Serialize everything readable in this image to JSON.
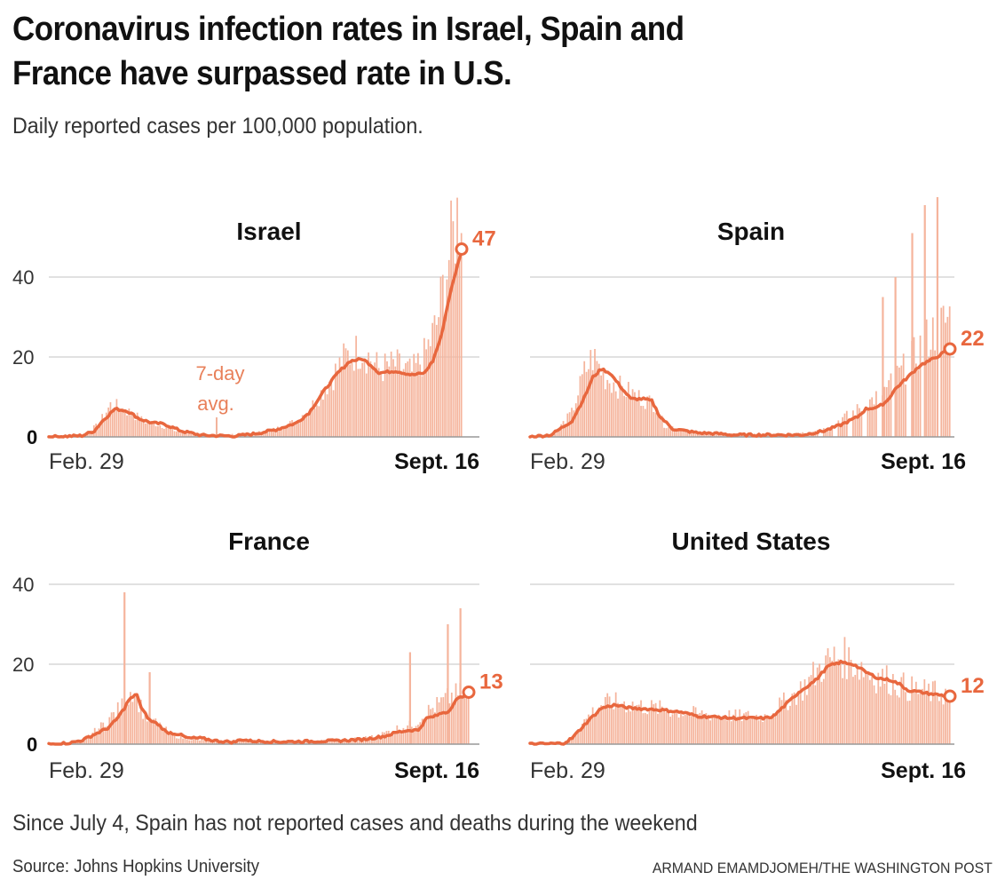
{
  "header": {
    "title_line1": "Coronavirus infection rates in Israel, Spain and",
    "title_line2": "France have surpassed rate in U.S.",
    "subtitle": "Daily reported cases per 100,000 population."
  },
  "footer": {
    "note": "Since July 4, Spain has not reported cases and deaths during the weekend",
    "source": "Source: Johns Hopkins University",
    "credit": "ARMAND EMAMDJOMEH/THE WASHINGTON POST"
  },
  "colors": {
    "bar": "#f5b49c",
    "avg_line": "#e8673e",
    "annotation": "#e8805a",
    "grid": "#cfcfcf"
  },
  "chart_data": [
    {
      "type": "bar",
      "title": "Israel",
      "xlabel_start": "Feb. 29",
      "xlabel_end": "Sept. 16",
      "yticks": [
        "0",
        "20",
        "40"
      ],
      "ylim": [
        0,
        68
      ],
      "end_value": 47,
      "end_label": "47",
      "annotation": {
        "line1": "7-day",
        "line2": "avg."
      },
      "avg_keyframes": [
        [
          0,
          0
        ],
        [
          0.08,
          0.3
        ],
        [
          0.11,
          1.5
        ],
        [
          0.13,
          4
        ],
        [
          0.16,
          7
        ],
        [
          0.19,
          6.5
        ],
        [
          0.22,
          4.5
        ],
        [
          0.25,
          3.5
        ],
        [
          0.28,
          3.2
        ],
        [
          0.32,
          1.5
        ],
        [
          0.37,
          0.4
        ],
        [
          0.45,
          0.2
        ],
        [
          0.5,
          0.8
        ],
        [
          0.55,
          1.8
        ],
        [
          0.6,
          3.5
        ],
        [
          0.63,
          6
        ],
        [
          0.67,
          12
        ],
        [
          0.7,
          16
        ],
        [
          0.73,
          19
        ],
        [
          0.76,
          19.5
        ],
        [
          0.78,
          18
        ],
        [
          0.8,
          16
        ],
        [
          0.84,
          16.5
        ],
        [
          0.88,
          15.5
        ],
        [
          0.91,
          16
        ],
        [
          0.93,
          19
        ],
        [
          0.95,
          25
        ],
        [
          0.97,
          35
        ],
        [
          1.0,
          47
        ]
      ],
      "daily_keyframes": [
        [
          0,
          0
        ],
        [
          0.08,
          0.5
        ],
        [
          0.12,
          3
        ],
        [
          0.15,
          8
        ],
        [
          0.17,
          7.5
        ],
        [
          0.2,
          6
        ],
        [
          0.23,
          4
        ],
        [
          0.27,
          3
        ],
        [
          0.32,
          1
        ],
        [
          0.4,
          0.3
        ],
        [
          0.5,
          1
        ],
        [
          0.55,
          2
        ],
        [
          0.6,
          4
        ],
        [
          0.64,
          8
        ],
        [
          0.68,
          14
        ],
        [
          0.72,
          20
        ],
        [
          0.76,
          22
        ],
        [
          0.8,
          17
        ],
        [
          0.84,
          18
        ],
        [
          0.88,
          16
        ],
        [
          0.91,
          20
        ],
        [
          0.94,
          28
        ],
        [
          0.97,
          45
        ],
        [
          1.0,
          60
        ]
      ]
    },
    {
      "type": "bar",
      "title": "Spain",
      "xlabel_start": "Feb. 29",
      "xlabel_end": "Sept. 16",
      "yticks": [],
      "ylim": [
        0,
        68
      ],
      "end_value": 22,
      "end_label": "22",
      "avg_keyframes": [
        [
          0,
          0
        ],
        [
          0.05,
          0.5
        ],
        [
          0.1,
          4
        ],
        [
          0.13,
          10
        ],
        [
          0.15,
          15
        ],
        [
          0.17,
          17
        ],
        [
          0.19,
          16
        ],
        [
          0.22,
          12
        ],
        [
          0.24,
          9.5
        ],
        [
          0.27,
          9.5
        ],
        [
          0.29,
          9
        ],
        [
          0.31,
          5
        ],
        [
          0.34,
          2
        ],
        [
          0.37,
          1.5
        ],
        [
          0.4,
          1
        ],
        [
          0.45,
          0.8
        ],
        [
          0.48,
          0.5
        ],
        [
          0.6,
          0.5
        ],
        [
          0.65,
          0.5
        ],
        [
          0.7,
          1.5
        ],
        [
          0.74,
          3
        ],
        [
          0.76,
          4
        ],
        [
          0.78,
          5
        ],
        [
          0.8,
          7
        ],
        [
          0.83,
          7.5
        ],
        [
          0.85,
          9
        ],
        [
          0.87,
          12
        ],
        [
          0.9,
          15
        ],
        [
          0.93,
          18
        ],
        [
          0.96,
          19.5
        ],
        [
          1.0,
          22
        ]
      ],
      "daily_keyframes": [
        [
          0,
          0
        ],
        [
          0.06,
          1
        ],
        [
          0.1,
          6
        ],
        [
          0.13,
          16
        ],
        [
          0.15,
          20
        ],
        [
          0.18,
          15
        ],
        [
          0.22,
          12
        ],
        [
          0.26,
          10
        ],
        [
          0.3,
          8
        ],
        [
          0.32,
          3
        ],
        [
          0.4,
          1
        ],
        [
          0.6,
          0.5
        ],
        [
          0.7,
          2
        ],
        [
          0.75,
          5
        ],
        [
          0.8,
          8
        ],
        [
          0.85,
          12
        ],
        [
          0.9,
          18
        ],
        [
          0.95,
          25
        ],
        [
          1.0,
          30
        ]
      ],
      "weekend_spikes": [
        [
          0.84,
          35
        ],
        [
          0.87,
          40
        ],
        [
          0.91,
          51
        ],
        [
          0.94,
          58
        ],
        [
          0.97,
          60
        ]
      ]
    },
    {
      "type": "bar",
      "title": "France",
      "xlabel_start": "Feb. 29",
      "xlabel_end": "Sept. 16",
      "yticks": [
        "0",
        "20",
        "40"
      ],
      "ylim": [
        0,
        40
      ],
      "end_value": 13,
      "end_label": "13",
      "avg_keyframes": [
        [
          0,
          0
        ],
        [
          0.05,
          0.3
        ],
        [
          0.08,
          1
        ],
        [
          0.11,
          2.5
        ],
        [
          0.14,
          4
        ],
        [
          0.16,
          6
        ],
        [
          0.18,
          9
        ],
        [
          0.19,
          11
        ],
        [
          0.21,
          12.5
        ],
        [
          0.22,
          9
        ],
        [
          0.24,
          6
        ],
        [
          0.26,
          5
        ],
        [
          0.28,
          3
        ],
        [
          0.31,
          2.5
        ],
        [
          0.33,
          1.5
        ],
        [
          0.36,
          1.5
        ],
        [
          0.4,
          0.8
        ],
        [
          0.44,
          0.5
        ],
        [
          0.46,
          1.2
        ],
        [
          0.48,
          0.8
        ],
        [
          0.55,
          0.6
        ],
        [
          0.62,
          0.7
        ],
        [
          0.68,
          0.8
        ],
        [
          0.75,
          1.2
        ],
        [
          0.8,
          2
        ],
        [
          0.83,
          3
        ],
        [
          0.86,
          3.5
        ],
        [
          0.88,
          3.5
        ],
        [
          0.9,
          6.5
        ],
        [
          0.92,
          7
        ],
        [
          0.94,
          8
        ],
        [
          0.95,
          8
        ],
        [
          0.97,
          11
        ],
        [
          1.0,
          13
        ]
      ],
      "daily_keyframes": [
        [
          0,
          0
        ],
        [
          0.08,
          1
        ],
        [
          0.12,
          4
        ],
        [
          0.15,
          7
        ],
        [
          0.18,
          10
        ],
        [
          0.2,
          14
        ],
        [
          0.23,
          7
        ],
        [
          0.26,
          5
        ],
        [
          0.3,
          2
        ],
        [
          0.35,
          1
        ],
        [
          0.45,
          0.8
        ],
        [
          0.6,
          0.8
        ],
        [
          0.7,
          1
        ],
        [
          0.78,
          2
        ],
        [
          0.83,
          4
        ],
        [
          0.87,
          5
        ],
        [
          0.9,
          8
        ],
        [
          0.93,
          10
        ],
        [
          0.96,
          12
        ],
        [
          1.0,
          13
        ]
      ],
      "spikes": [
        [
          0.18,
          38
        ],
        [
          0.24,
          18
        ],
        [
          0.86,
          23
        ],
        [
          0.95,
          30
        ],
        [
          0.98,
          34
        ]
      ]
    },
    {
      "type": "bar",
      "title": "United States",
      "xlabel_start": "Feb. 29",
      "xlabel_end": "Sept. 16",
      "yticks": [],
      "ylim": [
        0,
        40
      ],
      "end_value": 12,
      "end_label": "12",
      "avg_keyframes": [
        [
          0,
          0
        ],
        [
          0.08,
          0.2
        ],
        [
          0.1,
          1.5
        ],
        [
          0.14,
          6
        ],
        [
          0.17,
          9
        ],
        [
          0.2,
          9.8
        ],
        [
          0.24,
          9
        ],
        [
          0.28,
          8.8
        ],
        [
          0.32,
          8.5
        ],
        [
          0.36,
          8
        ],
        [
          0.4,
          7
        ],
        [
          0.44,
          6.8
        ],
        [
          0.48,
          6.5
        ],
        [
          0.52,
          6.5
        ],
        [
          0.56,
          6.5
        ],
        [
          0.58,
          7
        ],
        [
          0.61,
          10
        ],
        [
          0.64,
          13
        ],
        [
          0.68,
          16
        ],
        [
          0.71,
          19.5
        ],
        [
          0.74,
          20.5
        ],
        [
          0.77,
          20
        ],
        [
          0.8,
          18
        ],
        [
          0.83,
          16.5
        ],
        [
          0.86,
          16
        ],
        [
          0.88,
          15
        ],
        [
          0.9,
          13.5
        ],
        [
          0.93,
          13
        ],
        [
          0.96,
          12.5
        ],
        [
          1.0,
          12
        ]
      ],
      "daily_keyframes": [
        [
          0,
          0
        ],
        [
          0.08,
          0.3
        ],
        [
          0.1,
          2
        ],
        [
          0.14,
          7
        ],
        [
          0.17,
          10
        ],
        [
          0.2,
          10.5
        ],
        [
          0.3,
          9
        ],
        [
          0.4,
          7.5
        ],
        [
          0.5,
          7
        ],
        [
          0.56,
          7
        ],
        [
          0.6,
          10
        ],
        [
          0.65,
          14
        ],
        [
          0.7,
          20
        ],
        [
          0.74,
          22
        ],
        [
          0.78,
          20
        ],
        [
          0.82,
          17
        ],
        [
          0.86,
          16
        ],
        [
          0.9,
          14
        ],
        [
          0.95,
          13
        ],
        [
          1.0,
          12.5
        ]
      ]
    }
  ]
}
